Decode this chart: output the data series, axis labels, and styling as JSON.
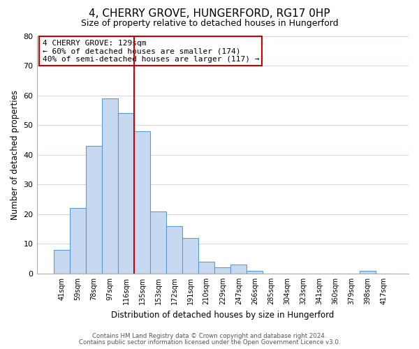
{
  "title": "4, CHERRY GROVE, HUNGERFORD, RG17 0HP",
  "subtitle": "Size of property relative to detached houses in Hungerford",
  "xlabel": "Distribution of detached houses by size in Hungerford",
  "ylabel": "Number of detached properties",
  "bar_labels": [
    "41sqm",
    "59sqm",
    "78sqm",
    "97sqm",
    "116sqm",
    "135sqm",
    "153sqm",
    "172sqm",
    "191sqm",
    "210sqm",
    "229sqm",
    "247sqm",
    "266sqm",
    "285sqm",
    "304sqm",
    "323sqm",
    "341sqm",
    "360sqm",
    "379sqm",
    "398sqm",
    "417sqm"
  ],
  "bar_heights": [
    8,
    22,
    43,
    59,
    54,
    48,
    21,
    16,
    12,
    4,
    2,
    3,
    1,
    0,
    0,
    0,
    0,
    0,
    0,
    1,
    0
  ],
  "bar_color": "#c6d9f1",
  "bar_edge_color": "#5b9bd5",
  "vline_color": "#cc0000",
  "ylim": [
    0,
    80
  ],
  "yticks": [
    0,
    10,
    20,
    30,
    40,
    50,
    60,
    70,
    80
  ],
  "annotation_title": "4 CHERRY GROVE: 129sqm",
  "annotation_line1": "← 60% of detached houses are smaller (174)",
  "annotation_line2": "40% of semi-detached houses are larger (117) →",
  "footnote1": "Contains HM Land Registry data © Crown copyright and database right 2024.",
  "footnote2": "Contains public sector information licensed under the Open Government Licence v3.0.",
  "background_color": "#ffffff",
  "grid_color": "#d0d8e8"
}
